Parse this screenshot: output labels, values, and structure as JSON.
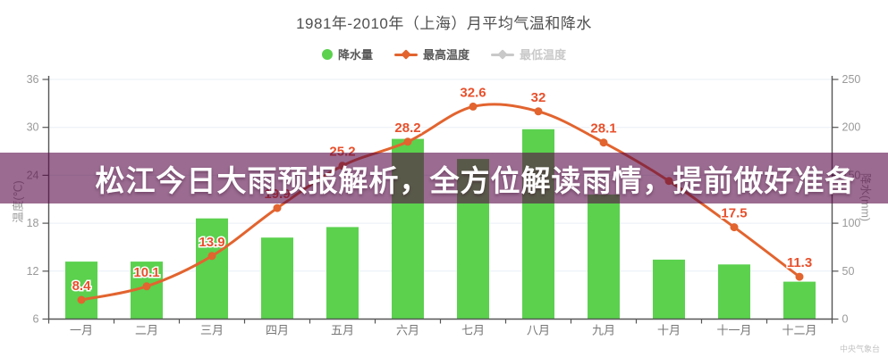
{
  "title": "1981年-2010年（上海）月平均气温和降水",
  "banner": {
    "text": "松江今日大雨预报解析，全方位解读雨情，提前做好准备"
  },
  "watermark": "中央气象台",
  "legend": {
    "items": [
      {
        "label": "降水量",
        "type": "bar",
        "color": "#5BD14E",
        "active": true
      },
      {
        "label": "最高温度",
        "type": "line",
        "color": "#E2642F",
        "active": true
      },
      {
        "label": "最低温度",
        "type": "line",
        "color": "#C9C9C9",
        "active": false
      }
    ]
  },
  "chart_data": {
    "type": "bar",
    "title": "1981年-2010年（上海）月平均气温和降水",
    "categories": [
      "一月",
      "二月",
      "三月",
      "四月",
      "五月",
      "六月",
      "七月",
      "八月",
      "九月",
      "十月",
      "十一月",
      "十二月"
    ],
    "series": [
      {
        "name": "降水量",
        "type": "bar",
        "axis": "right",
        "color": "#5BD14E",
        "values": [
          60,
          60,
          105,
          85,
          96,
          188,
          167,
          198,
          130,
          62,
          57,
          39
        ]
      },
      {
        "name": "最高温度",
        "type": "line",
        "axis": "left",
        "color": "#E2642F",
        "label_color": "#E8502C",
        "values": [
          8.4,
          10.1,
          13.9,
          19.9,
          25.2,
          28.2,
          32.6,
          32,
          28.1,
          23.3,
          17.5,
          11.3
        ],
        "labels": [
          "8.4",
          "10.1",
          "13.9",
          "19.9",
          "25.2",
          "28.2",
          "32.6",
          "32",
          "28.1",
          "",
          "17.5",
          "11.3"
        ]
      },
      {
        "name": "最低温度",
        "type": "line",
        "axis": "left",
        "color": "#C9C9C9",
        "hidden": true,
        "values": []
      }
    ],
    "y_left": {
      "name": "温度(℃)",
      "min": 6,
      "max": 36,
      "ticks": [
        6,
        12,
        18,
        24,
        30,
        36
      ]
    },
    "y_right": {
      "name": "降水(mm)",
      "min": 0,
      "max": 250,
      "ticks": [
        0,
        50,
        100,
        150,
        200,
        250
      ]
    },
    "grid": true,
    "legend_position": "top",
    "grid_color": "#E9EFF5",
    "axis_color": "#555555",
    "tick_label_color": "#999999",
    "category_label_color": "#777777"
  }
}
